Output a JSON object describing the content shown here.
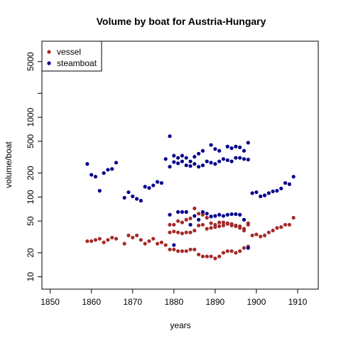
{
  "chart_data": {
    "type": "scatter",
    "title": "Volume by boat for Austria-Hungary",
    "xlabel": "years",
    "ylabel": "volume/boat",
    "xlim": [
      1848,
      1915
    ],
    "ylim": [
      7,
      9000
    ],
    "y_scale": "log",
    "x_ticks": [
      1850,
      1860,
      1870,
      1880,
      1890,
      1900,
      1910
    ],
    "y_ticks": [
      10,
      20,
      50,
      100,
      200,
      500,
      1000,
      5000
    ],
    "y_ticks_unlabeled": [
      2000
    ],
    "grid": false,
    "legend_position": "top-left",
    "series": [
      {
        "name": "vessel",
        "color": "#A52A2A",
        "points": [
          [
            1859,
            28
          ],
          [
            1860,
            28
          ],
          [
            1861,
            29
          ],
          [
            1862,
            30
          ],
          [
            1863,
            27
          ],
          [
            1864,
            29
          ],
          [
            1865,
            31
          ],
          [
            1866,
            30
          ],
          [
            1868,
            26
          ],
          [
            1869,
            33
          ],
          [
            1870,
            31
          ],
          [
            1871,
            33
          ],
          [
            1872,
            29
          ],
          [
            1873,
            26
          ],
          [
            1874,
            28
          ],
          [
            1875,
            30
          ],
          [
            1876,
            26
          ],
          [
            1877,
            27
          ],
          [
            1878,
            25
          ],
          [
            1879,
            22
          ],
          [
            1880,
            22
          ],
          [
            1881,
            21
          ],
          [
            1882,
            21
          ],
          [
            1883,
            21
          ],
          [
            1884,
            22
          ],
          [
            1885,
            22
          ],
          [
            1886,
            19
          ],
          [
            1887,
            18
          ],
          [
            1888,
            18
          ],
          [
            1889,
            18
          ],
          [
            1890,
            17
          ],
          [
            1891,
            18
          ],
          [
            1892,
            20
          ],
          [
            1893,
            21
          ],
          [
            1894,
            21
          ],
          [
            1895,
            20
          ],
          [
            1896,
            21
          ],
          [
            1897,
            23
          ],
          [
            1898,
            24
          ],
          [
            1879,
            36
          ],
          [
            1880,
            37
          ],
          [
            1881,
            36
          ],
          [
            1882,
            35
          ],
          [
            1883,
            36
          ],
          [
            1884,
            36
          ],
          [
            1885,
            38
          ],
          [
            1886,
            44
          ],
          [
            1887,
            45
          ],
          [
            1888,
            40
          ],
          [
            1889,
            41
          ],
          [
            1890,
            42
          ],
          [
            1891,
            43
          ],
          [
            1892,
            44
          ],
          [
            1893,
            46
          ],
          [
            1894,
            44
          ],
          [
            1895,
            44
          ],
          [
            1896,
            41
          ],
          [
            1897,
            40
          ],
          [
            1898,
            45
          ],
          [
            1879,
            45
          ],
          [
            1880,
            45
          ],
          [
            1881,
            50
          ],
          [
            1882,
            48
          ],
          [
            1883,
            52
          ],
          [
            1884,
            54
          ],
          [
            1885,
            72
          ],
          [
            1886,
            62
          ],
          [
            1887,
            60
          ],
          [
            1888,
            55
          ],
          [
            1889,
            47
          ],
          [
            1890,
            45
          ],
          [
            1891,
            48
          ],
          [
            1892,
            48
          ],
          [
            1893,
            47
          ],
          [
            1894,
            46
          ],
          [
            1895,
            43
          ],
          [
            1896,
            43
          ],
          [
            1897,
            38
          ],
          [
            1898,
            47
          ],
          [
            1899,
            33
          ],
          [
            1900,
            34
          ],
          [
            1901,
            32
          ],
          [
            1902,
            33
          ],
          [
            1903,
            36
          ],
          [
            1904,
            38
          ],
          [
            1905,
            41
          ],
          [
            1906,
            42
          ],
          [
            1907,
            45
          ],
          [
            1908,
            45
          ],
          [
            1909,
            55
          ]
        ]
      },
      {
        "name": "steamboat",
        "color": "#00008B",
        "points": [
          [
            1859,
            260
          ],
          [
            1860,
            190
          ],
          [
            1861,
            180
          ],
          [
            1862,
            120
          ],
          [
            1863,
            200
          ],
          [
            1864,
            220
          ],
          [
            1865,
            225
          ],
          [
            1866,
            270
          ],
          [
            1868,
            98
          ],
          [
            1869,
            115
          ],
          [
            1870,
            102
          ],
          [
            1871,
            95
          ],
          [
            1872,
            90
          ],
          [
            1873,
            135
          ],
          [
            1874,
            130
          ],
          [
            1875,
            140
          ],
          [
            1876,
            155
          ],
          [
            1877,
            150
          ],
          [
            1878,
            300
          ],
          [
            1879,
            580
          ],
          [
            1879,
            240
          ],
          [
            1880,
            330
          ],
          [
            1880,
            275
          ],
          [
            1881,
            310
          ],
          [
            1881,
            265
          ],
          [
            1882,
            330
          ],
          [
            1882,
            280
          ],
          [
            1883,
            310
          ],
          [
            1883,
            250
          ],
          [
            1884,
            280
          ],
          [
            1884,
            245
          ],
          [
            1885,
            320
          ],
          [
            1885,
            260
          ],
          [
            1886,
            350
          ],
          [
            1886,
            240
          ],
          [
            1887,
            380
          ],
          [
            1887,
            250
          ],
          [
            1888,
            280
          ],
          [
            1889,
            450
          ],
          [
            1889,
            270
          ],
          [
            1890,
            400
          ],
          [
            1890,
            260
          ],
          [
            1891,
            380
          ],
          [
            1891,
            280
          ],
          [
            1892,
            300
          ],
          [
            1893,
            430
          ],
          [
            1893,
            290
          ],
          [
            1894,
            410
          ],
          [
            1894,
            280
          ],
          [
            1895,
            430
          ],
          [
            1895,
            310
          ],
          [
            1896,
            420
          ],
          [
            1896,
            310
          ],
          [
            1897,
            380
          ],
          [
            1897,
            300
          ],
          [
            1898,
            480
          ],
          [
            1898,
            295
          ],
          [
            1879,
            60
          ],
          [
            1881,
            65
          ],
          [
            1882,
            65
          ],
          [
            1883,
            65
          ],
          [
            1884,
            45
          ],
          [
            1885,
            58
          ],
          [
            1886,
            52
          ],
          [
            1887,
            65
          ],
          [
            1888,
            62
          ],
          [
            1889,
            57
          ],
          [
            1890,
            58
          ],
          [
            1891,
            60
          ],
          [
            1892,
            58
          ],
          [
            1893,
            60
          ],
          [
            1894,
            61
          ],
          [
            1895,
            61
          ],
          [
            1896,
            60
          ],
          [
            1897,
            52
          ],
          [
            1898,
            23
          ],
          [
            1880,
            25
          ],
          [
            1899,
            112
          ],
          [
            1900,
            115
          ],
          [
            1901,
            102
          ],
          [
            1902,
            105
          ],
          [
            1903,
            112
          ],
          [
            1904,
            118
          ],
          [
            1905,
            120
          ],
          [
            1906,
            128
          ],
          [
            1907,
            150
          ],
          [
            1908,
            145
          ],
          [
            1909,
            180
          ]
        ]
      }
    ]
  }
}
